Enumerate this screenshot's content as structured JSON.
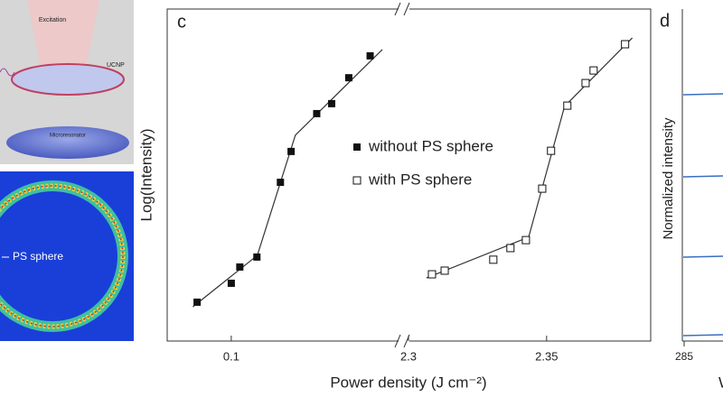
{
  "left_panel": {
    "labels": [
      "Excitation",
      "UCNP",
      "Microresonator"
    ],
    "inset_label": "PS sphere"
  },
  "chart_data": {
    "type": "scatter",
    "panel_label": "c",
    "x_label": "Power density (J cm⁻²)",
    "y_label": "Log(Intensity)",
    "x_segments": [
      {
        "xlim": [
          0.07,
          0.18
        ],
        "xticks": [
          0.1
        ]
      },
      {
        "xlim": [
          2.3,
          2.388
        ],
        "xticks": [
          2.3,
          2.35
        ]
      }
    ],
    "ylim": [
      0,
      1
    ],
    "legend": "center",
    "series": [
      {
        "name": "without PS sphere",
        "marker": "filled-square",
        "color": "#111111",
        "segment": 0,
        "x": [
          0.084,
          0.1,
          0.104,
          0.112,
          0.123,
          0.128,
          0.14,
          0.147,
          0.155,
          0.165
        ],
        "values": [
          0.117,
          0.174,
          0.223,
          0.253,
          0.478,
          0.571,
          0.685,
          0.715,
          0.793,
          0.859
        ]
      },
      {
        "name": "with PS sphere",
        "marker": "open-square",
        "color": "#111111",
        "segment": 1,
        "x": [
          2.3085,
          2.3131,
          2.3307,
          2.3369,
          2.3425,
          2.3484,
          2.3516,
          2.3575,
          2.3641,
          2.367,
          2.3784
        ],
        "values": [
          0.201,
          0.212,
          0.245,
          0.28,
          0.304,
          0.459,
          0.573,
          0.709,
          0.777,
          0.815,
          0.894
        ]
      }
    ],
    "fits": [
      {
        "segment": 0,
        "color": "#333333",
        "x": [
          0.082,
          0.1122,
          0.13,
          0.1707
        ],
        "values": [
          0.103,
          0.258,
          0.62,
          0.878
        ]
      },
      {
        "segment": 1,
        "color": "#333333",
        "x": [
          2.3065,
          2.3435,
          2.3565,
          2.381
        ],
        "values": [
          0.19,
          0.313,
          0.707,
          0.913
        ]
      }
    ]
  },
  "right_panel": {
    "panel_label": "d",
    "y_label": "Normalized intensity",
    "xticks": [
      285
    ],
    "x_label_fragment": "W"
  }
}
